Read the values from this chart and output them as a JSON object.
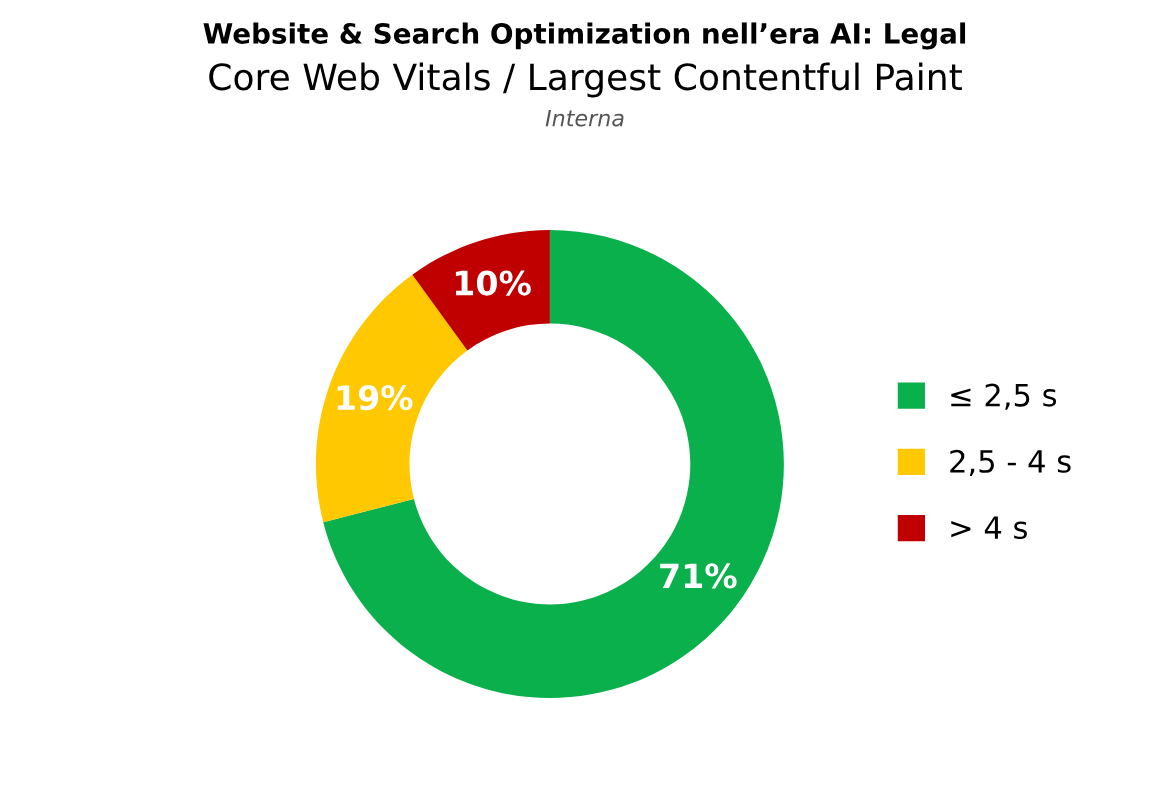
{
  "chart_data": {
    "type": "donut",
    "title": "Website & Search Optimization nell’era AI: Legal",
    "subtitle": "Core Web Vitals / Largest Contentful Paint",
    "annotations": [
      "Interna"
    ],
    "categories": [
      "≤ 2,5 s",
      "2,5 - 4 s",
      "> 4 s"
    ],
    "values": [
      71,
      19,
      10
    ],
    "colors": [
      "#0ab04b",
      "#ffc800",
      "#c00000"
    ],
    "value_labels": [
      "71%",
      "19%",
      "10%"
    ],
    "legend": "right"
  }
}
